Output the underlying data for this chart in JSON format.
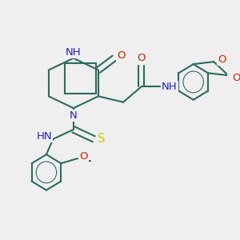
{
  "bg_color": "#efefef",
  "bond_color": "#2d6b5e",
  "N_color": "#2222bb",
  "O_color": "#cc2200",
  "S_color": "#cccc00",
  "line_width": 1.5,
  "font_size": 9.5,
  "fig_w": 3.0,
  "fig_h": 3.0,
  "dpi": 100,
  "xlim": [
    0,
    10
  ],
  "ylim": [
    0,
    10
  ]
}
